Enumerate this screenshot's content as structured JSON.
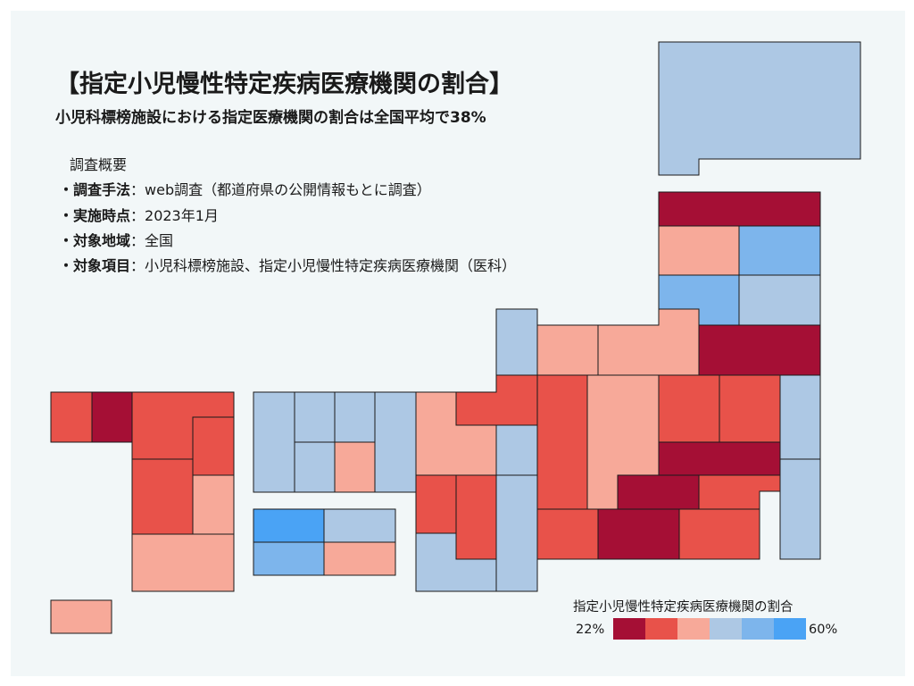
{
  "title": "【指定小児慢性特定疾病医療機関の割合】",
  "subtitle": "小児科標榜施設における指定医療機関の割合は全国平均で38%",
  "summary": {
    "heading": "調査概要",
    "lines": [
      {
        "key": "・調査手法",
        "value": "：web調査（都道府県の公開情報もとに調査）"
      },
      {
        "key": "・実施時点",
        "value": "：2023年1月"
      },
      {
        "key": "・対象地域",
        "value": "：全国"
      },
      {
        "key": "・対象項目",
        "value": "：小児科標榜施設、指定小児慢性特定疾病医療機関（医科）"
      }
    ]
  },
  "legend": {
    "title": "指定小児慢性特定疾病医療機関の割合",
    "min_label": "22%",
    "max_label": "60%",
    "swatches": [
      "#a50f35",
      "#e8524a",
      "#f7a999",
      "#adc8e4",
      "#7db5ec",
      "#4aa3f5"
    ]
  },
  "colors": {
    "border": "#1a1a1a",
    "panel": "#f2f7f8"
  }
}
